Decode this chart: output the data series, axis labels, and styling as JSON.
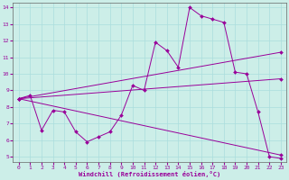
{
  "xlabel": "Windchill (Refroidissement éolien,°C)",
  "background_color": "#cceee8",
  "grid_color": "#aadddd",
  "line_color": "#990099",
  "xlim": [
    -0.5,
    23.5
  ],
  "ylim": [
    4.7,
    14.3
  ],
  "xticks": [
    0,
    1,
    2,
    3,
    4,
    5,
    6,
    7,
    8,
    9,
    10,
    11,
    12,
    13,
    14,
    15,
    16,
    17,
    18,
    19,
    20,
    21,
    22,
    23
  ],
  "yticks": [
    5,
    6,
    7,
    8,
    9,
    10,
    11,
    12,
    13,
    14
  ],
  "series1": [
    [
      0,
      8.5
    ],
    [
      1,
      8.7
    ],
    [
      2,
      6.6
    ],
    [
      3,
      7.8
    ],
    [
      4,
      7.7
    ],
    [
      5,
      6.5
    ],
    [
      6,
      5.9
    ],
    [
      7,
      6.2
    ],
    [
      8,
      6.5
    ],
    [
      9,
      7.5
    ],
    [
      10,
      9.3
    ],
    [
      11,
      9.0
    ],
    [
      12,
      11.9
    ],
    [
      13,
      11.4
    ],
    [
      14,
      10.4
    ],
    [
      15,
      14.0
    ],
    [
      16,
      13.5
    ],
    [
      17,
      13.3
    ],
    [
      18,
      13.1
    ],
    [
      19,
      10.1
    ],
    [
      20,
      10.0
    ],
    [
      21,
      7.7
    ],
    [
      22,
      5.0
    ],
    [
      23,
      4.9
    ]
  ],
  "line2": [
    [
      0,
      8.5
    ],
    [
      23,
      11.3
    ]
  ],
  "line3": [
    [
      0,
      8.5
    ],
    [
      23,
      9.7
    ]
  ],
  "line4": [
    [
      0,
      8.5
    ],
    [
      23,
      5.1
    ]
  ]
}
